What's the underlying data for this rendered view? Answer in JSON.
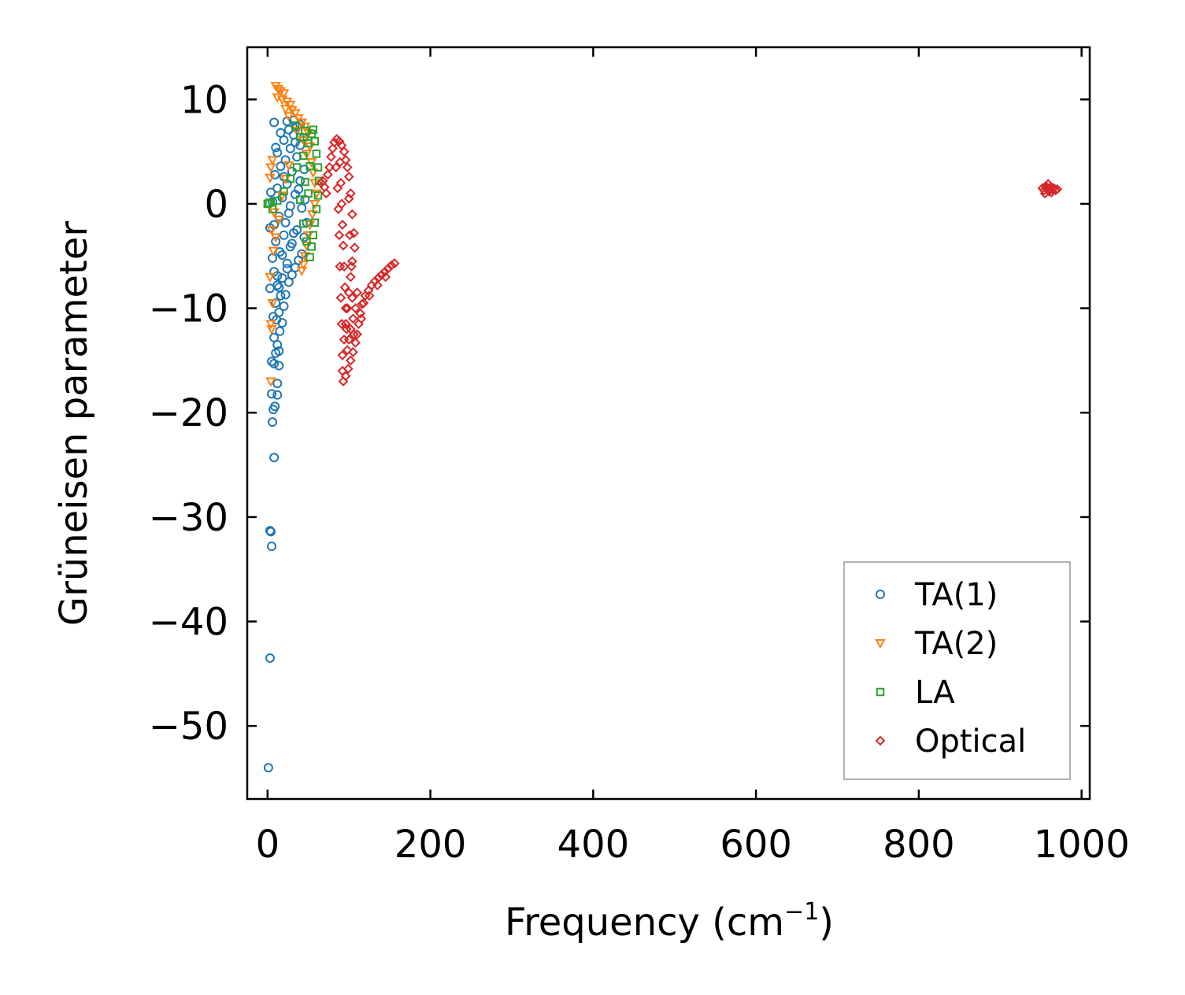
{
  "chart_data": {
    "type": "scatter",
    "title": "",
    "xlabel": "Frequency (cm",
    "xlabel_superscript": "−1",
    "xlabel_suffix": ")",
    "ylabel": "Grüneisen parameter",
    "xlim": [
      -25,
      1010
    ],
    "ylim": [
      -57,
      15
    ],
    "xticks": [
      0,
      200,
      400,
      600,
      800,
      1000
    ],
    "xtick_labels": [
      "0",
      "200",
      "400",
      "600",
      "800",
      "1000"
    ],
    "yticks": [
      10,
      0,
      -10,
      -20,
      -30,
      -40,
      -50
    ],
    "ytick_labels": [
      "10",
      "0",
      "−10",
      "−20",
      "−30",
      "−40",
      "−50"
    ],
    "legend_position": "lower-right",
    "grid": false,
    "series": [
      {
        "name": "TA(1)",
        "marker": "circle",
        "color": "#1f77b4",
        "points": [
          [
            1,
            -54
          ],
          [
            3,
            -43.5
          ],
          [
            5,
            -32.8
          ],
          [
            3,
            -31.3
          ],
          [
            4,
            -31.4
          ],
          [
            8,
            -24.3
          ],
          [
            6,
            -20.9
          ],
          [
            5,
            -18.2
          ],
          [
            9,
            -19.4
          ],
          [
            7,
            -19.7
          ],
          [
            12,
            -18.3
          ],
          [
            12,
            -17.2
          ],
          [
            5,
            -15.1
          ],
          [
            8,
            -15.3
          ],
          [
            14,
            -15.5
          ],
          [
            10,
            -14.3
          ],
          [
            14,
            -14.1
          ],
          [
            12,
            -13.5
          ],
          [
            8,
            -12.8
          ],
          [
            15,
            -12.2
          ],
          [
            11,
            -11.1
          ],
          [
            18,
            -11.4
          ],
          [
            7,
            -10.8
          ],
          [
            14,
            -10.4
          ],
          [
            20,
            -9.8
          ],
          [
            10,
            -9.5
          ],
          [
            16,
            -8.8
          ],
          [
            22,
            -8.7
          ],
          [
            3,
            -8.1
          ],
          [
            12,
            -7.8
          ],
          [
            26,
            -7.5
          ],
          [
            18,
            -7.1
          ],
          [
            30,
            -6.8
          ],
          [
            8,
            -6.5
          ],
          [
            34,
            -6.1
          ],
          [
            24,
            -5.7
          ],
          [
            6,
            -5.2
          ],
          [
            38,
            -5.4
          ],
          [
            15,
            -4.6
          ],
          [
            42,
            -4.8
          ],
          [
            28,
            -4.1
          ],
          [
            10,
            -3.6
          ],
          [
            45,
            -3.2
          ],
          [
            20,
            -3.0
          ],
          [
            36,
            -2.5
          ],
          [
            3,
            -2.3
          ],
          [
            8,
            -2.0
          ],
          [
            48,
            -1.8
          ],
          [
            14,
            -1.2
          ],
          [
            26,
            -0.9
          ],
          [
            42,
            -0.4
          ],
          [
            6,
            0.2
          ],
          [
            18,
            0.6
          ],
          [
            34,
            0.9
          ],
          [
            4,
            1.1
          ],
          [
            12,
            1.5
          ],
          [
            24,
            1.9
          ],
          [
            40,
            2.2
          ],
          [
            9,
            2.8
          ],
          [
            30,
            3.1
          ],
          [
            16,
            3.6
          ],
          [
            45,
            3.3
          ],
          [
            22,
            4.2
          ],
          [
            36,
            4.5
          ],
          [
            12,
            4.9
          ],
          [
            28,
            5.3
          ],
          [
            10,
            5.4
          ],
          [
            40,
            5.6
          ],
          [
            20,
            6.1
          ],
          [
            32,
            6.6
          ],
          [
            26,
            7.1
          ],
          [
            36,
            7.4
          ],
          [
            8,
            7.8
          ],
          [
            24,
            7.9
          ],
          [
            32,
            8.0
          ],
          [
            40,
            7.6
          ],
          [
            16,
            6.8
          ],
          [
            44,
            6.3
          ],
          [
            18,
            -4.9
          ],
          [
            30,
            -3.8
          ],
          [
            22,
            -1.8
          ],
          [
            38,
            1.4
          ],
          [
            14,
            -8.0
          ],
          [
            24,
            -6.2
          ],
          [
            32,
            -2.8
          ],
          [
            46,
            0.4
          ],
          [
            20,
            2.6
          ],
          [
            34,
            5.9
          ],
          [
            28,
            -0.2
          ],
          [
            12,
            -6.9
          ]
        ]
      },
      {
        "name": "TA(2)",
        "marker": "triangle",
        "color": "#ff7f0e",
        "points": [
          [
            10,
            11.3
          ],
          [
            13,
            11.0
          ],
          [
            16,
            10.8
          ],
          [
            20,
            10.6
          ],
          [
            12,
            10.2
          ],
          [
            18,
            10.0
          ],
          [
            24,
            9.8
          ],
          [
            28,
            9.5
          ],
          [
            22,
            9.1
          ],
          [
            30,
            9.0
          ],
          [
            34,
            8.7
          ],
          [
            26,
            8.4
          ],
          [
            38,
            8.2
          ],
          [
            42,
            7.8
          ],
          [
            46,
            7.4
          ],
          [
            36,
            7.0
          ],
          [
            50,
            6.8
          ],
          [
            44,
            6.1
          ],
          [
            52,
            5.5
          ],
          [
            48,
            4.8
          ],
          [
            54,
            4.0
          ],
          [
            56,
            3.0
          ],
          [
            58,
            2.0
          ],
          [
            60,
            1.0
          ],
          [
            58,
            0.0
          ],
          [
            55,
            -1.0
          ],
          [
            52,
            -2.0
          ],
          [
            50,
            -3.0
          ],
          [
            48,
            -4.0
          ],
          [
            46,
            -5.0
          ],
          [
            44,
            -5.8
          ],
          [
            42,
            -6.4
          ],
          [
            4,
            3.5
          ],
          [
            6,
            4.2
          ],
          [
            3,
            2.5
          ],
          [
            5,
            -2.5
          ],
          [
            5,
            -12.0
          ],
          [
            4,
            -17.0
          ],
          [
            4,
            -11.5
          ],
          [
            6,
            -9.5
          ],
          [
            3,
            -7.0
          ],
          [
            7,
            -4.5
          ],
          [
            10,
            -3.2
          ],
          [
            14,
            -1.5
          ],
          [
            8,
            -0.8
          ],
          [
            18,
            0.8
          ],
          [
            22,
            2.4
          ],
          [
            26,
            3.7
          ]
        ]
      },
      {
        "name": "LA",
        "marker": "square",
        "color": "#2ca02c",
        "points": [
          [
            0,
            0.0
          ],
          [
            2,
            0.1
          ],
          [
            6,
            -0.5
          ],
          [
            12,
            0.3
          ],
          [
            20,
            1.2
          ],
          [
            28,
            2.4
          ],
          [
            36,
            3.5
          ],
          [
            44,
            4.6
          ],
          [
            50,
            5.8
          ],
          [
            54,
            6.7
          ],
          [
            56,
            7.1
          ],
          [
            58,
            6.0
          ],
          [
            60,
            4.8
          ],
          [
            62,
            3.5
          ],
          [
            63,
            2.2
          ],
          [
            62,
            0.8
          ],
          [
            60,
            -0.5
          ],
          [
            58,
            -1.8
          ],
          [
            56,
            -3.0
          ],
          [
            54,
            -4.1
          ],
          [
            52,
            -5.1
          ],
          [
            48,
            -3.6
          ],
          [
            44,
            -1.9
          ],
          [
            40,
            0.4
          ],
          [
            46,
            2.1
          ],
          [
            52,
            3.6
          ],
          [
            40,
            6.4
          ],
          [
            34,
            7.5
          ],
          [
            46,
            7.0
          ],
          [
            50,
            1.0
          ]
        ]
      },
      {
        "name": "Optical",
        "marker": "diamond",
        "color": "#d62728",
        "points": [
          [
            66,
            2.0
          ],
          [
            68,
            2.2
          ],
          [
            70,
            1.6
          ],
          [
            72,
            1.0
          ],
          [
            74,
            2.8
          ],
          [
            76,
            3.5
          ],
          [
            78,
            4.5
          ],
          [
            80,
            5.3
          ],
          [
            82,
            5.9
          ],
          [
            85,
            6.2
          ],
          [
            88,
            6.0
          ],
          [
            91,
            5.6
          ],
          [
            94,
            5.0
          ],
          [
            96,
            4.2
          ],
          [
            98,
            3.5
          ],
          [
            100,
            2.6
          ],
          [
            102,
            1.0
          ],
          [
            104,
            -1.0
          ],
          [
            106,
            -2.8
          ],
          [
            107,
            -4.2
          ],
          [
            104,
            -5.5
          ],
          [
            102,
            -7.0
          ],
          [
            100,
            -8.5
          ],
          [
            98,
            -10.0
          ],
          [
            96,
            -11.5
          ],
          [
            94,
            -13.0
          ],
          [
            92,
            -14.5
          ],
          [
            92,
            -16.0
          ],
          [
            93,
            -17.0
          ],
          [
            96,
            -16.5
          ],
          [
            99,
            -15.8
          ],
          [
            102,
            -15.0
          ],
          [
            105,
            -14.2
          ],
          [
            108,
            -13.3
          ],
          [
            110,
            -12.5
          ],
          [
            112,
            -11.5
          ],
          [
            114,
            -10.5
          ],
          [
            116,
            -9.6
          ],
          [
            120,
            -8.8
          ],
          [
            124,
            -8.3
          ],
          [
            128,
            -7.8
          ],
          [
            132,
            -7.4
          ],
          [
            136,
            -7.1
          ],
          [
            140,
            -6.8
          ],
          [
            144,
            -6.5
          ],
          [
            148,
            -6.2
          ],
          [
            152,
            -5.9
          ],
          [
            156,
            -5.7
          ],
          [
            89,
            4.0
          ],
          [
            90,
            2.0
          ],
          [
            91,
            0.0
          ],
          [
            92,
            -2.0
          ],
          [
            93,
            -4.0
          ],
          [
            94,
            -6.0
          ],
          [
            95,
            -8.0
          ],
          [
            96,
            -10.0
          ],
          [
            97,
            -12.0
          ],
          [
            98,
            -14.0
          ],
          [
            100,
            0.5
          ],
          [
            101,
            -3.0
          ],
          [
            103,
            -6.0
          ],
          [
            104,
            -9.0
          ],
          [
            105,
            -11.0
          ],
          [
            106,
            -12.5
          ],
          [
            84,
            3.5
          ],
          [
            86,
            1.5
          ],
          [
            87,
            -0.5
          ],
          [
            88,
            -3.0
          ],
          [
            89,
            -6.0
          ],
          [
            90,
            -9.0
          ],
          [
            91,
            -11.5
          ],
          [
            115,
            -11.0
          ],
          [
            118,
            -9.5
          ],
          [
            125,
            -8.8
          ],
          [
            135,
            -7.8
          ],
          [
            145,
            -7.0
          ],
          [
            100,
            -13.0
          ],
          [
            102,
            -12.0
          ],
          [
            108,
            -10.0
          ],
          [
            110,
            -8.5
          ],
          [
            952,
            1.5
          ],
          [
            954,
            1.3
          ],
          [
            956,
            1.7
          ],
          [
            958,
            1.4
          ],
          [
            960,
            1.2
          ],
          [
            962,
            1.6
          ],
          [
            964,
            1.4
          ],
          [
            966,
            1.5
          ],
          [
            968,
            1.3
          ],
          [
            970,
            1.4
          ],
          [
            955,
            1.0
          ],
          [
            959,
            1.9
          ],
          [
            963,
            1.1
          ],
          [
            957,
            1.55
          ],
          [
            961,
            1.45
          ]
        ]
      }
    ]
  }
}
